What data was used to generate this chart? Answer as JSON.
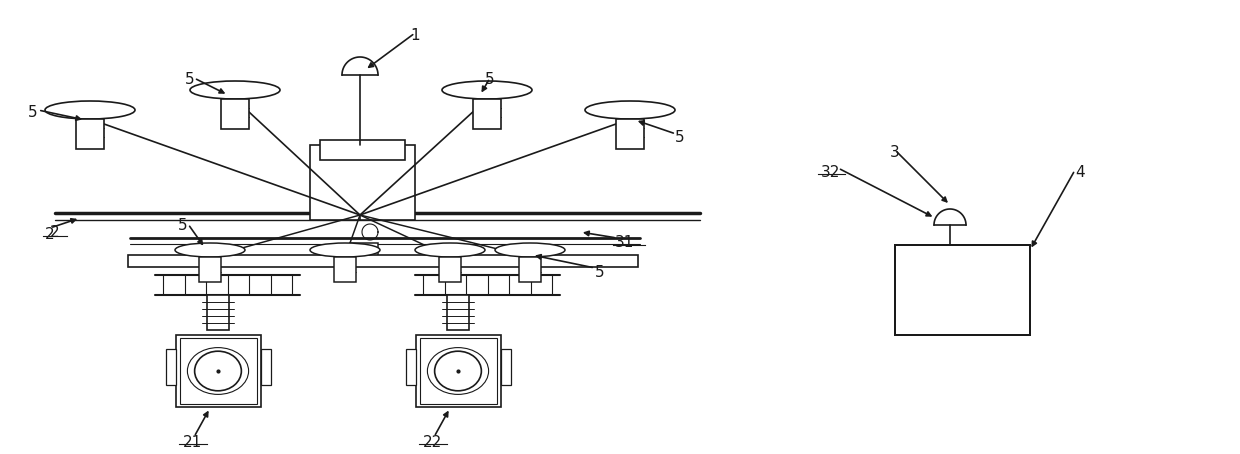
{
  "bg_color": "#ffffff",
  "line_color": "#1a1a1a",
  "lw": 1.2,
  "fig_width": 12.4,
  "fig_height": 4.54,
  "dpi": 100
}
